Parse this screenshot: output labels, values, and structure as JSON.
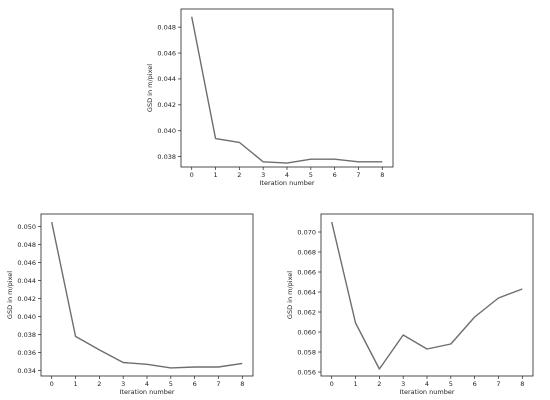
{
  "chart_data": [
    {
      "type": "line",
      "xlabel": "Iteration number",
      "ylabel": "GSD in m/pixel",
      "x": [
        0,
        1,
        2,
        3,
        4,
        5,
        6,
        7,
        8
      ],
      "xticks": [
        0,
        1,
        2,
        3,
        4,
        5,
        6,
        7,
        8
      ],
      "yticks": [
        0.038,
        0.04,
        0.042,
        0.044,
        0.046,
        0.048
      ],
      "xlim": [
        -0.45,
        8.45
      ],
      "ylim": [
        0.0372,
        0.0494
      ],
      "grid": false,
      "line_color": "#6e6e6e",
      "series": [
        {
          "values": [
            0.0488,
            0.0394,
            0.0391,
            0.0376,
            0.0375,
            0.0378,
            0.0378,
            0.0376,
            0.0376
          ]
        }
      ]
    },
    {
      "type": "line",
      "xlabel": "Iteration number",
      "ylabel": "GSD in m/pixel",
      "x": [
        0,
        1,
        2,
        3,
        4,
        5,
        6,
        7,
        8
      ],
      "xticks": [
        0,
        1,
        2,
        3,
        4,
        5,
        6,
        7,
        8
      ],
      "yticks": [
        0.034,
        0.036,
        0.038,
        0.04,
        0.042,
        0.044,
        0.046,
        0.048,
        0.05
      ],
      "xlim": [
        -0.45,
        8.45
      ],
      "ylim": [
        0.0334,
        0.0514
      ],
      "grid": false,
      "line_color": "#6e6e6e",
      "series": [
        {
          "values": [
            0.0505,
            0.0378,
            0.0363,
            0.0349,
            0.0347,
            0.0343,
            0.0344,
            0.0344,
            0.0348
          ]
        }
      ]
    },
    {
      "type": "line",
      "xlabel": "Iteration number",
      "ylabel": "GSD in m/pixel",
      "x": [
        0,
        1,
        2,
        3,
        4,
        5,
        6,
        7,
        8
      ],
      "xticks": [
        0,
        1,
        2,
        3,
        4,
        5,
        6,
        7,
        8
      ],
      "yticks": [
        0.056,
        0.058,
        0.06,
        0.062,
        0.064,
        0.066,
        0.068,
        0.07
      ],
      "xlim": [
        -0.45,
        8.45
      ],
      "ylim": [
        0.0556,
        0.0718
      ],
      "grid": false,
      "line_color": "#6e6e6e",
      "series": [
        {
          "values": [
            0.071,
            0.0609,
            0.0563,
            0.0597,
            0.0583,
            0.0588,
            0.0615,
            0.0634,
            0.0643
          ]
        }
      ]
    }
  ]
}
